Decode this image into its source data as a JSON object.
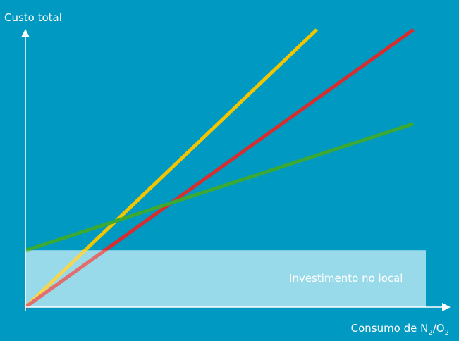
{
  "chart_data": {
    "type": "line",
    "title": "",
    "ylabel": "Custo total",
    "xlabel": {
      "prefix": "Consumo de N",
      "sub1": "2",
      "mid": "/O",
      "sub2": "2"
    },
    "xlim": [
      0,
      100
    ],
    "ylim": [
      0,
      100
    ],
    "grid": false,
    "legend": "none",
    "band": {
      "label": "Investimento no local",
      "y_top": 20.5,
      "x_end": 100,
      "color": "#7fd3e6"
    },
    "series": [
      {
        "color": "#f2c500",
        "x": [
          0,
          73.8
        ],
        "y": [
          0,
          100
        ]
      },
      {
        "color": "#d62e2e",
        "x": [
          0,
          98.3
        ],
        "y": [
          0,
          100
        ]
      },
      {
        "color": "#3aaa35",
        "x": [
          0,
          98.3
        ],
        "y": [
          20.4,
          66.1
        ]
      }
    ]
  }
}
